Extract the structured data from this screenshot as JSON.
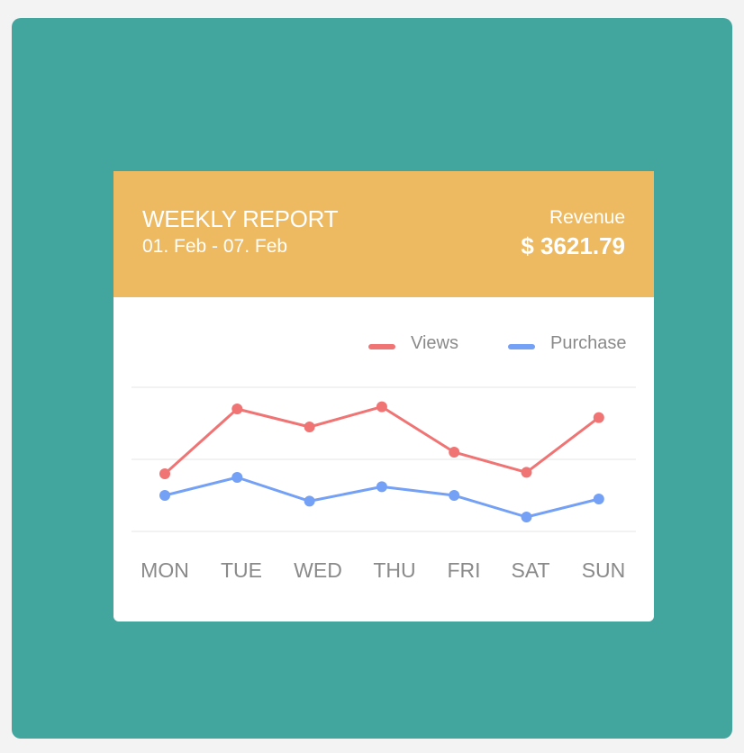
{
  "header": {
    "title": "WEEKLY REPORT",
    "date_range": "01. Feb - 07. Feb",
    "revenue_label": "Revenue",
    "revenue_value": "$ 3621.79"
  },
  "colors": {
    "background": "#42a69f",
    "header": "#eeba61",
    "views": "#f07474",
    "purchase": "#74a0f5",
    "grid": "#eeeeee",
    "label": "#8a8a8a"
  },
  "chart_data": {
    "type": "line",
    "categories": [
      "MON",
      "TUE",
      "WED",
      "THU",
      "FRI",
      "SAT",
      "SUN"
    ],
    "series": [
      {
        "name": "Views",
        "color": "#f07474",
        "values": [
          8,
          17,
          14.5,
          17.3,
          11,
          8.2,
          15.8
        ]
      },
      {
        "name": "Purchase",
        "color": "#74a0f5",
        "values": [
          5,
          7.5,
          4.2,
          6.2,
          5,
          2,
          4.5
        ]
      }
    ],
    "ylim": [
      0,
      20
    ],
    "grid": true,
    "legend_position": "top-right"
  }
}
